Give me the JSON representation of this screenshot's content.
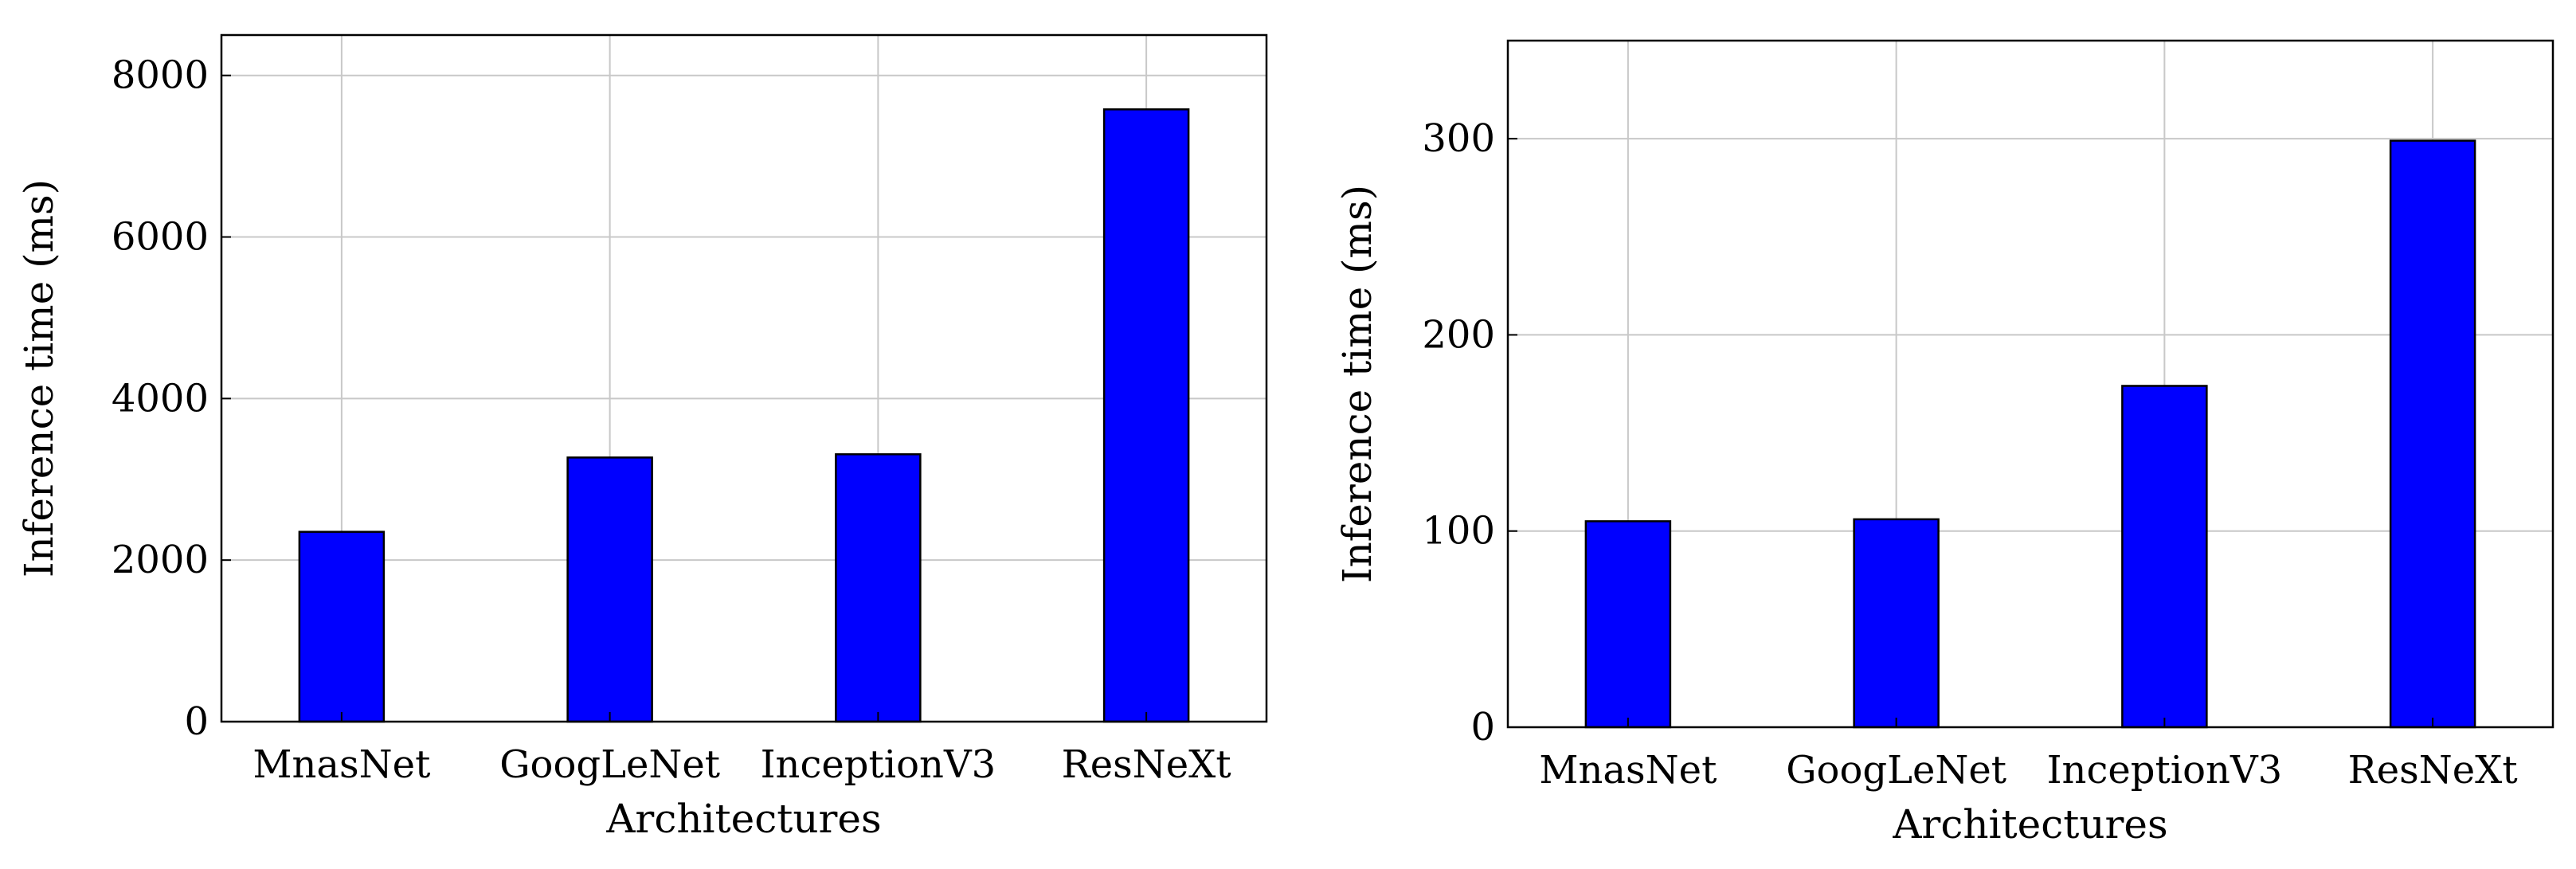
{
  "chart_data": [
    {
      "type": "bar",
      "categories": [
        "MnasNet",
        "GoogLeNet",
        "InceptionV3",
        "ResNeXt"
      ],
      "values": [
        2350,
        3270,
        3310,
        7580
      ],
      "xlabel": "Architectures",
      "ylabel": "Inference time (ms)",
      "ylim": [
        0,
        8500
      ],
      "yticks": [
        0,
        2000,
        4000,
        6000,
        8000
      ],
      "grid": true,
      "bar_color": "#0000ff"
    },
    {
      "type": "bar",
      "categories": [
        "MnasNet",
        "GoogLeNet",
        "InceptionV3",
        "ResNeXt"
      ],
      "values": [
        105,
        106,
        174,
        299
      ],
      "xlabel": "Architectures",
      "ylabel": "Inference time (ms)",
      "ylim": [
        0,
        350
      ],
      "yticks": [
        0,
        100,
        200,
        300
      ],
      "grid": true,
      "bar_color": "#0000ff"
    }
  ]
}
